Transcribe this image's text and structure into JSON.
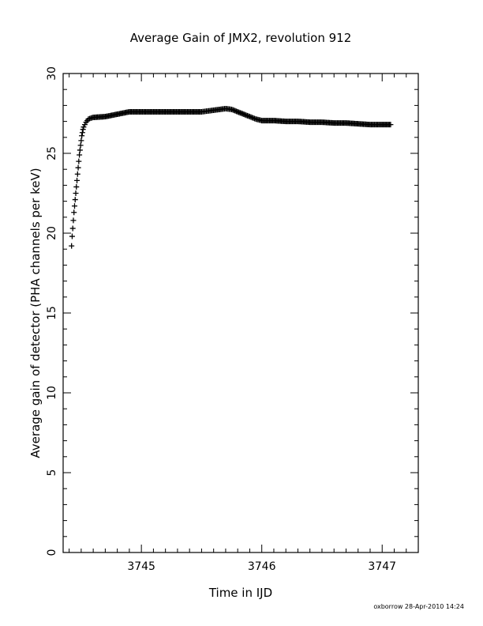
{
  "chart_data": {
    "type": "scatter",
    "title": "Average Gain of JMX2, revolution 912",
    "xlabel": "Time in IJD",
    "ylabel": "Average gain of detector (PHA channels per keV)",
    "footer": "oxborrow 28-Apr-2010 14:24",
    "xlim": [
      3744.35,
      3747.3
    ],
    "ylim": [
      0,
      30
    ],
    "x_ticks": [
      3745,
      3746,
      3747
    ],
    "x_tick_labels": [
      "3745",
      "3746",
      "3747"
    ],
    "y_ticks": [
      0,
      5,
      10,
      15,
      20,
      25,
      30
    ],
    "y_tick_labels": [
      "0",
      "5",
      "10",
      "15",
      "20",
      "25",
      "30"
    ],
    "grid": false,
    "marker": "plus",
    "color": "#000000",
    "series": [
      {
        "points": [
          [
            3744.42,
            19.2
          ],
          [
            3744.425,
            19.8
          ],
          [
            3744.43,
            20.3
          ],
          [
            3744.435,
            20.8
          ],
          [
            3744.44,
            21.3
          ],
          [
            3744.445,
            21.7
          ],
          [
            3744.45,
            22.1
          ],
          [
            3744.455,
            22.5
          ],
          [
            3744.46,
            22.9
          ],
          [
            3744.465,
            23.3
          ],
          [
            3744.47,
            23.7
          ],
          [
            3744.475,
            24.1
          ],
          [
            3744.48,
            24.5
          ],
          [
            3744.485,
            24.9
          ],
          [
            3744.49,
            25.2
          ],
          [
            3744.495,
            25.5
          ],
          [
            3744.5,
            25.8
          ],
          [
            3744.505,
            26.1
          ],
          [
            3744.51,
            26.3
          ],
          [
            3744.515,
            26.5
          ],
          [
            3744.52,
            26.65
          ],
          [
            3744.53,
            26.8
          ],
          [
            3744.54,
            26.95
          ],
          [
            3744.55,
            27.05
          ],
          [
            3744.56,
            27.15
          ],
          [
            3744.58,
            27.2
          ],
          [
            3744.6,
            27.25
          ],
          [
            3744.7,
            27.3
          ],
          [
            3744.8,
            27.45
          ],
          [
            3744.9,
            27.6
          ],
          [
            3745.0,
            27.6
          ],
          [
            3745.1,
            27.6
          ],
          [
            3745.2,
            27.6
          ],
          [
            3745.3,
            27.6
          ],
          [
            3745.4,
            27.6
          ],
          [
            3745.5,
            27.6
          ],
          [
            3745.55,
            27.65
          ],
          [
            3745.6,
            27.7
          ],
          [
            3745.65,
            27.75
          ],
          [
            3745.7,
            27.8
          ],
          [
            3745.75,
            27.75
          ],
          [
            3745.8,
            27.6
          ],
          [
            3745.85,
            27.45
          ],
          [
            3745.9,
            27.3
          ],
          [
            3745.95,
            27.15
          ],
          [
            3746.0,
            27.05
          ],
          [
            3746.1,
            27.05
          ],
          [
            3746.2,
            27.0
          ],
          [
            3746.3,
            27.0
          ],
          [
            3746.4,
            26.95
          ],
          [
            3746.5,
            26.95
          ],
          [
            3746.6,
            26.9
          ],
          [
            3746.7,
            26.9
          ],
          [
            3746.8,
            26.85
          ],
          [
            3746.9,
            26.8
          ],
          [
            3747.0,
            26.8
          ],
          [
            3747.07,
            26.8
          ]
        ]
      }
    ]
  }
}
